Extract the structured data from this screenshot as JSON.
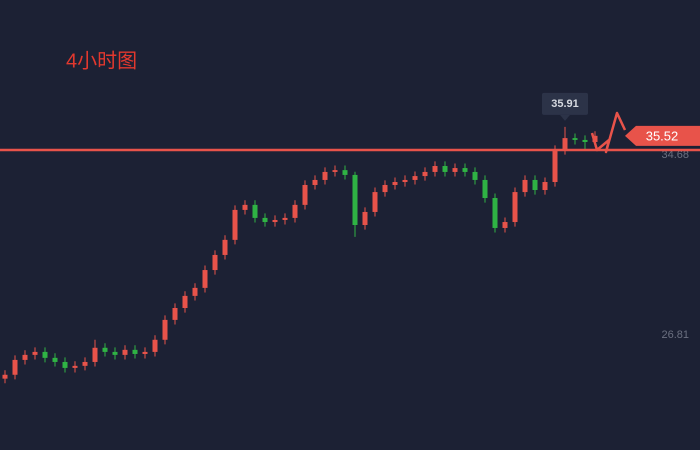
{
  "chart_data": {
    "type": "candlestick",
    "title": "4小时图",
    "open": [
      24.9,
      25.07,
      25.72,
      25.94,
      26.07,
      25.81,
      25.63,
      25.37,
      25.46,
      25.63,
      26.25,
      26.07,
      25.94,
      26.16,
      25.98,
      26.07,
      26.6,
      27.47,
      27.99,
      28.52,
      28.87,
      29.65,
      30.31,
      30.97,
      32.28,
      32.5,
      31.93,
      31.75,
      31.84,
      31.93,
      32.5,
      33.37,
      33.59,
      33.94,
      34.02,
      33.81,
      31.62,
      32.19,
      33.06,
      33.37,
      33.5,
      33.59,
      33.76,
      33.94,
      34.2,
      33.94,
      34.11,
      33.94,
      33.59,
      32.8,
      31.49,
      31.75,
      33.06,
      33.59,
      33.15,
      33.5,
      34.9,
      35.42,
      35.34,
      35.25
    ],
    "high": [
      25.27,
      25.92,
      26.14,
      26.27,
      26.27,
      26.01,
      25.83,
      25.66,
      25.83,
      26.6,
      26.45,
      26.27,
      26.36,
      26.36,
      26.27,
      26.8,
      27.67,
      28.19,
      28.72,
      29.07,
      29.85,
      30.51,
      31.17,
      32.48,
      32.7,
      32.7,
      32.13,
      32.04,
      32.13,
      32.7,
      33.57,
      33.79,
      34.14,
      34.22,
      34.22,
      33.95,
      32.39,
      33.26,
      33.57,
      33.7,
      33.79,
      33.96,
      34.14,
      34.4,
      34.4,
      34.31,
      34.31,
      34.14,
      33.79,
      33.0,
      31.95,
      33.26,
      33.79,
      33.79,
      33.7,
      35.1,
      35.91,
      35.62,
      35.54,
      35.72
    ],
    "low": [
      24.7,
      24.87,
      25.52,
      25.74,
      25.61,
      25.43,
      25.17,
      25.17,
      25.26,
      25.43,
      25.87,
      25.74,
      25.74,
      25.78,
      25.78,
      25.87,
      26.4,
      27.27,
      27.79,
      28.32,
      28.67,
      29.45,
      30.11,
      30.77,
      32.08,
      31.73,
      31.55,
      31.55,
      31.64,
      31.73,
      32.3,
      33.17,
      33.39,
      33.74,
      33.61,
      31.1,
      31.42,
      31.99,
      32.86,
      33.17,
      33.3,
      33.39,
      33.56,
      33.74,
      33.74,
      33.74,
      33.74,
      33.39,
      32.6,
      31.29,
      31.29,
      31.55,
      32.86,
      32.95,
      32.95,
      33.3,
      34.7,
      35.14,
      34.9,
      35.05
    ],
    "close": [
      25.07,
      25.72,
      25.94,
      26.07,
      25.81,
      25.63,
      25.37,
      25.46,
      25.63,
      26.25,
      26.07,
      25.94,
      26.16,
      25.98,
      26.07,
      26.6,
      27.47,
      27.99,
      28.52,
      28.87,
      29.65,
      30.31,
      30.97,
      32.28,
      32.5,
      31.93,
      31.75,
      31.84,
      31.93,
      32.5,
      33.37,
      33.59,
      33.94,
      34.02,
      33.81,
      31.62,
      32.19,
      33.06,
      33.37,
      33.5,
      33.59,
      33.76,
      33.94,
      34.2,
      33.94,
      34.11,
      33.94,
      33.59,
      32.8,
      31.49,
      31.75,
      33.06,
      33.59,
      33.15,
      33.5,
      34.9,
      35.42,
      35.34,
      35.25,
      35.52
    ],
    "up_color": "#e8534a",
    "down_color": "#2fb344",
    "ylim": [
      21.78,
      41.46
    ],
    "yticks": [
      34.68,
      26.81
    ],
    "hline": {
      "value": 34.9,
      "color": "#e8534a"
    },
    "high_label_index": 56,
    "last_label_index": 59
  }
}
